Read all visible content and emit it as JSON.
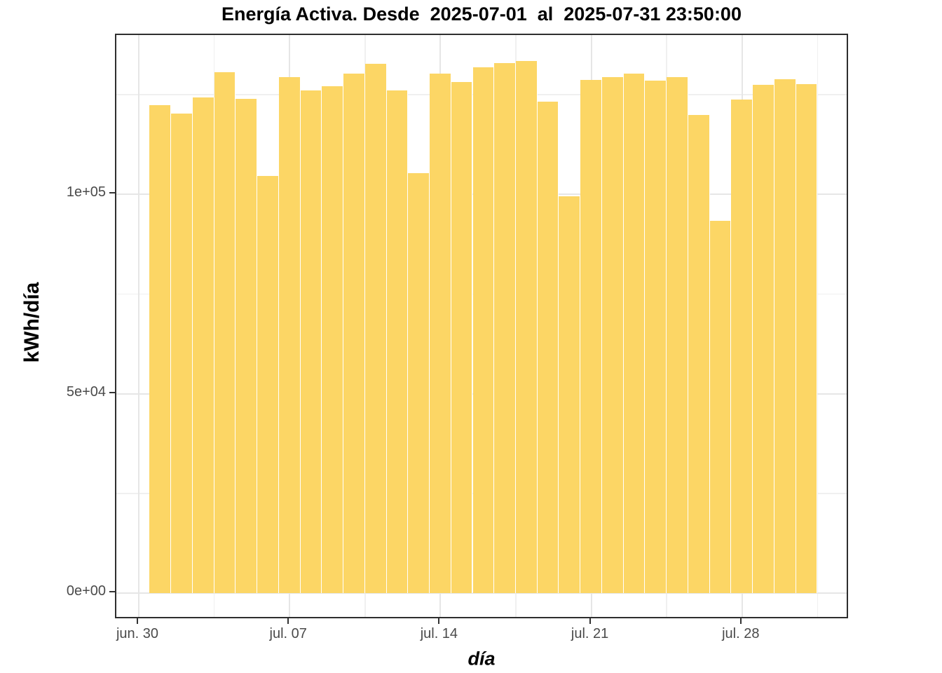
{
  "chart_data": {
    "type": "bar",
    "title": "Energía Activa. Desde  2025-07-01  al  2025-07-31 23:50:00",
    "xlabel": "día",
    "ylabel": "kWh/día",
    "categories": [
      "2025-07-01",
      "2025-07-02",
      "2025-07-03",
      "2025-07-04",
      "2025-07-05",
      "2025-07-06",
      "2025-07-07",
      "2025-07-08",
      "2025-07-09",
      "2025-07-10",
      "2025-07-11",
      "2025-07-12",
      "2025-07-13",
      "2025-07-14",
      "2025-07-15",
      "2025-07-16",
      "2025-07-17",
      "2025-07-18",
      "2025-07-19",
      "2025-07-20",
      "2025-07-21",
      "2025-07-22",
      "2025-07-23",
      "2025-07-24",
      "2025-07-25",
      "2025-07-26",
      "2025-07-27",
      "2025-07-28",
      "2025-07-29",
      "2025-07-30",
      "2025-07-31"
    ],
    "values": [
      122300,
      120200,
      124300,
      130600,
      123900,
      104600,
      129400,
      126000,
      127100,
      130200,
      132700,
      126000,
      105300,
      130200,
      128100,
      131800,
      132900,
      133400,
      123200,
      99500,
      128700,
      129400,
      130200,
      128500,
      129400,
      119900,
      93300,
      123700,
      127400,
      128800,
      127600
    ],
    "x_ticks": [
      {
        "label": "jun. 30",
        "day": 0
      },
      {
        "label": "jul. 07",
        "day": 7
      },
      {
        "label": "jul. 14",
        "day": 14
      },
      {
        "label": "jul. 21",
        "day": 21
      },
      {
        "label": "jul. 28",
        "day": 28
      }
    ],
    "x_minor_days": [
      3.5,
      10.5,
      17.5,
      24.5,
      31.5
    ],
    "y_ticks": [
      {
        "label": "0e+00",
        "value": 0
      },
      {
        "label": "5e+04",
        "value": 50000
      },
      {
        "label": "1e+05",
        "value": 100000
      }
    ],
    "y_minor": [
      25000,
      75000,
      125000
    ],
    "ylim": [
      0,
      139900
    ],
    "grid": true,
    "legend": "none",
    "bar_color": "#FCD665",
    "bar_separator_color": "#FFFFFF",
    "colors": {
      "grid_major": "#E6E6E6",
      "grid_minor": "#F0F0F0",
      "panel_border": "#2E2E2E",
      "axis_text": "#4A4A4A",
      "title_text": "#000000"
    }
  }
}
